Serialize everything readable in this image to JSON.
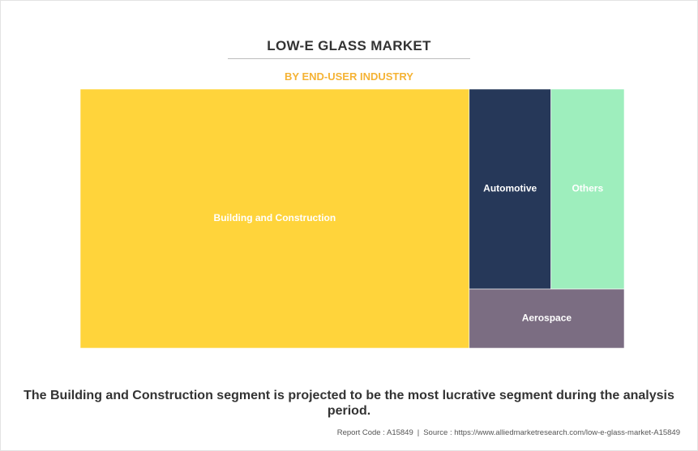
{
  "chart_data": {
    "type": "treemap",
    "title": "LOW-E GLASS MARKET",
    "subtitle": "BY END-USER INDUSTRY",
    "segments": [
      {
        "label": "Building and Construction",
        "value": 71.5,
        "color": "#ffd43b"
      },
      {
        "label": "Automotive",
        "value": 11.6,
        "color": "#263859"
      },
      {
        "label": "Others",
        "value": 10.4,
        "color": "#9eeebd"
      },
      {
        "label": "Aerospace",
        "value": 6.5,
        "color": "#7b6d82"
      }
    ]
  },
  "caption": "The Building and Construction segment is projected to be the most lucrative segment during the analysis period.",
  "footer": {
    "report_code": "Report Code : A15849",
    "separator": "|",
    "source": "Source : https://www.alliedmarketresearch.com/low-e-glass-market-A15849"
  }
}
